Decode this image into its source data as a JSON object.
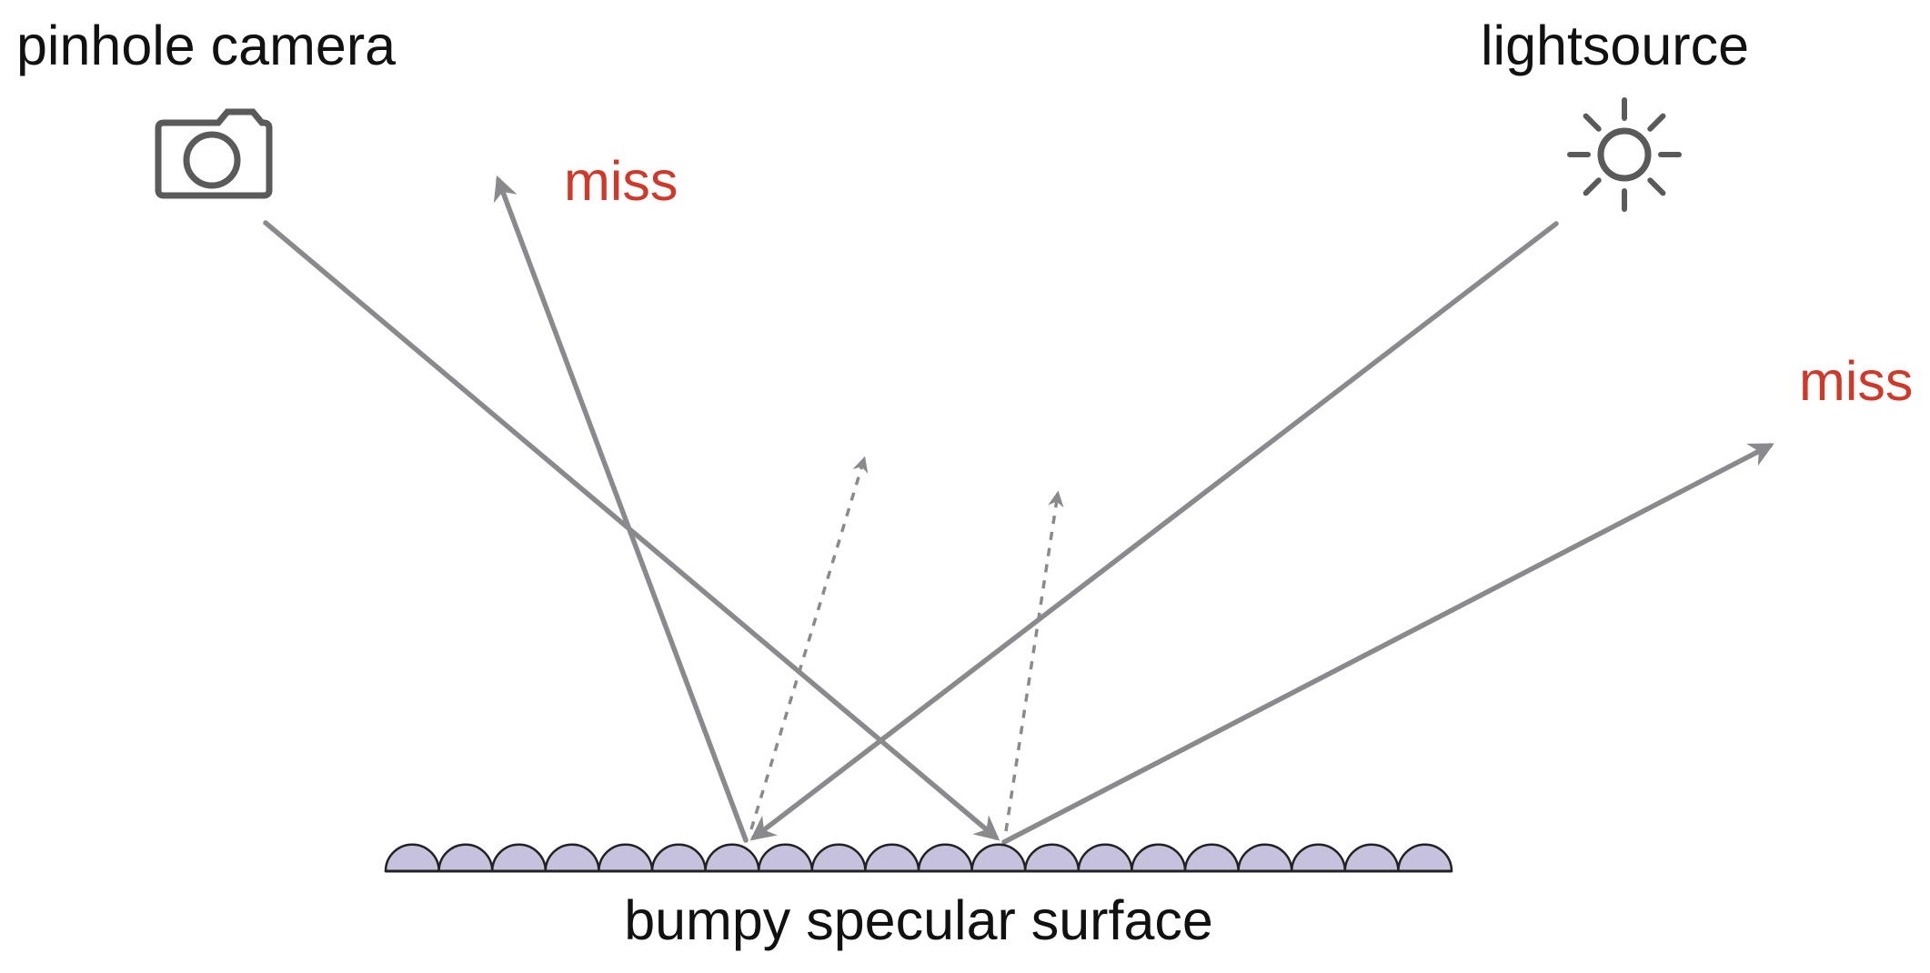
{
  "labels": {
    "camera": "pinhole camera",
    "light": "lightsource",
    "surface": "bumpy specular surface",
    "miss_left": "miss",
    "miss_right": "miss"
  },
  "icons": {
    "camera": "camera-icon",
    "light": "sun-icon"
  },
  "colors": {
    "ray": "#8a898e",
    "miss": "#d0382a",
    "bump_fill": "#c6c1dd",
    "icon": "#5a5a5a"
  },
  "surface": {
    "bump_count": 20
  }
}
